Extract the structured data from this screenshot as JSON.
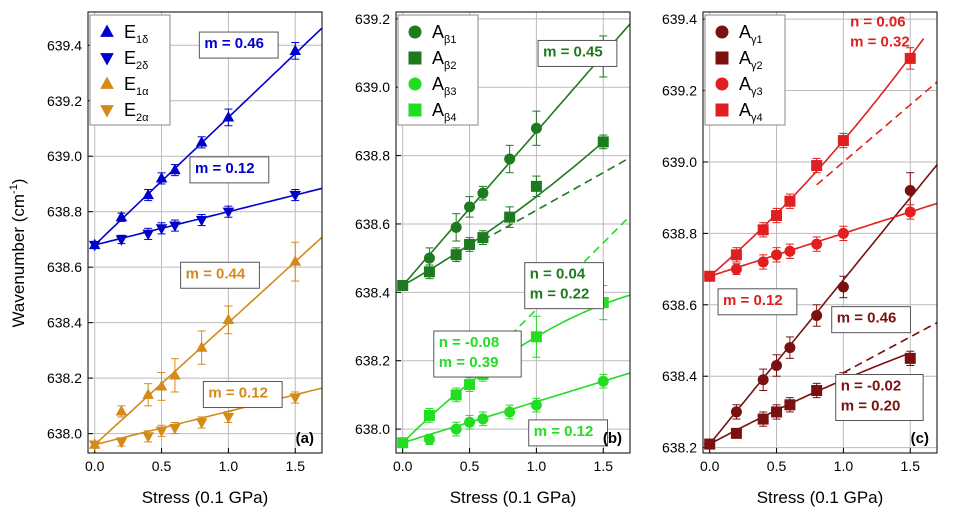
{
  "y_axis_label": "Wavenumber (cm",
  "y_axis_label_sup": "-1",
  "y_axis_label_end": ")",
  "chart_data": [
    {
      "type": "scatter",
      "panel_label": "(a)",
      "xlabel": "Stress (0.1 GPa)",
      "ylabel": "Wavenumber (cm-1)",
      "xlim": [
        -0.05,
        1.7
      ],
      "ylim": [
        637.93,
        639.52
      ],
      "xticks": [
        0.0,
        0.5,
        1.0,
        1.5
      ],
      "xtick_labels": [
        "0.0",
        "0.5",
        "1.0",
        "1.5"
      ],
      "yticks": [
        638.0,
        638.2,
        638.4,
        638.6,
        638.8,
        639.0,
        639.2,
        639.4
      ],
      "ytick_labels": [
        "638.0",
        "638.2",
        "638.4",
        "638.6",
        "638.8",
        "639.0",
        "639.2",
        "639.4"
      ],
      "legend_position": "top-left",
      "series": [
        {
          "name": "E1δ",
          "label_main": "E",
          "label_sub": "1δ",
          "color": "#0000cc",
          "marker": "triangle-up",
          "x": [
            0.0,
            0.2,
            0.4,
            0.5,
            0.6,
            0.8,
            1.0,
            1.5
          ],
          "y": [
            638.68,
            638.78,
            638.86,
            638.92,
            638.95,
            639.05,
            639.14,
            639.38
          ],
          "err": [
            0.01,
            0.015,
            0.02,
            0.02,
            0.02,
            0.02,
            0.03,
            0.03
          ],
          "fit": {
            "a": 638.68,
            "m": 0.46,
            "n": 0,
            "x_end": 1.7,
            "dashed": false
          }
        },
        {
          "name": "E2δ",
          "label_main": "E",
          "label_sub": "2δ",
          "color": "#0000cc",
          "marker": "triangle-down",
          "x": [
            0.0,
            0.2,
            0.4,
            0.5,
            0.6,
            0.8,
            1.0,
            1.5
          ],
          "y": [
            638.68,
            638.7,
            638.72,
            638.74,
            638.75,
            638.77,
            638.8,
            638.86
          ],
          "err": [
            0.01,
            0.015,
            0.02,
            0.02,
            0.02,
            0.02,
            0.02,
            0.02
          ],
          "fit": {
            "a": 638.68,
            "m": 0.12,
            "n": 0,
            "x_end": 1.7,
            "dashed": false
          }
        },
        {
          "name": "E1α",
          "label_main": "E",
          "label_sub": "1α",
          "color": "#d48a1a",
          "marker": "triangle-up",
          "x": [
            0.0,
            0.2,
            0.4,
            0.5,
            0.6,
            0.8,
            1.0,
            1.5
          ],
          "y": [
            637.96,
            638.08,
            638.14,
            638.17,
            638.21,
            638.31,
            638.41,
            638.62
          ],
          "err": [
            0.01,
            0.02,
            0.04,
            0.05,
            0.06,
            0.06,
            0.05,
            0.07
          ],
          "fit": {
            "a": 637.96,
            "m": 0.44,
            "n": 0,
            "x_end": 1.7,
            "dashed": false
          }
        },
        {
          "name": "E2α",
          "label_main": "E",
          "label_sub": "2α",
          "color": "#d48a1a",
          "marker": "triangle-down",
          "x": [
            0.0,
            0.2,
            0.4,
            0.5,
            0.6,
            0.8,
            1.0,
            1.5
          ],
          "y": [
            637.96,
            637.97,
            637.99,
            638.01,
            638.02,
            638.04,
            638.06,
            638.13
          ],
          "err": [
            0.01,
            0.015,
            0.02,
            0.02,
            0.02,
            0.02,
            0.02,
            0.02
          ],
          "fit": {
            "a": 637.96,
            "m": 0.12,
            "n": 0,
            "x_end": 1.7,
            "dashed": false
          }
        }
      ],
      "annotations": [
        {
          "text": "m = 0.46",
          "lines": [
            "m = 0.46"
          ],
          "color": "#0000cc",
          "boxed": true,
          "x": 0.82,
          "y": 639.39
        },
        {
          "text": "m = 0.12",
          "lines": [
            "m = 0.12"
          ],
          "color": "#0000cc",
          "boxed": true,
          "x": 0.75,
          "y": 638.94
        },
        {
          "text": "m = 0.44",
          "lines": [
            "m = 0.44"
          ],
          "color": "#d48a1a",
          "boxed": true,
          "x": 0.68,
          "y": 638.56
        },
        {
          "text": "m = 0.12",
          "lines": [
            "m = 0.12"
          ],
          "color": "#d48a1a",
          "boxed": true,
          "x": 0.85,
          "y": 638.13
        }
      ]
    },
    {
      "type": "scatter",
      "panel_label": "(b)",
      "xlabel": "Stress (0.1 GPa)",
      "ylabel": "",
      "xlim": [
        -0.05,
        1.7
      ],
      "ylim": [
        637.93,
        639.22
      ],
      "xticks": [
        0.0,
        0.5,
        1.0,
        1.5
      ],
      "xtick_labels": [
        "0.0",
        "0.5",
        "1.0",
        "1.5"
      ],
      "yticks": [
        638.0,
        638.2,
        638.4,
        638.6,
        638.8,
        639.0,
        639.2
      ],
      "ytick_labels": [
        "638.0",
        "638.2",
        "638.4",
        "638.6",
        "638.8",
        "639.0",
        "639.2"
      ],
      "legend_position": "top-left",
      "series": [
        {
          "name": "Aβ1",
          "label_main": "A",
          "label_sub": "β1",
          "color": "#1e7a1e",
          "marker": "circle",
          "x": [
            0.0,
            0.2,
            0.4,
            0.5,
            0.6,
            0.8,
            1.0,
            1.5
          ],
          "y": [
            638.42,
            638.5,
            638.59,
            638.65,
            638.69,
            638.79,
            638.88,
            639.09
          ],
          "err": [
            0.01,
            0.03,
            0.04,
            0.03,
            0.02,
            0.04,
            0.05,
            0.06
          ],
          "fit": {
            "a": 638.42,
            "m": 0.45,
            "n": 0,
            "x_end": 1.7,
            "dashed": false
          }
        },
        {
          "name": "Aβ2",
          "label_main": "A",
          "label_sub": "β2",
          "color": "#1e7a1e",
          "marker": "square",
          "x": [
            0.0,
            0.2,
            0.4,
            0.5,
            0.6,
            0.8,
            1.0,
            1.5
          ],
          "y": [
            638.42,
            638.46,
            638.51,
            638.54,
            638.56,
            638.62,
            638.71,
            638.84
          ],
          "err": [
            0.01,
            0.02,
            0.02,
            0.02,
            0.02,
            0.03,
            0.03,
            0.02
          ],
          "fit": {
            "a": 638.42,
            "m": 0.22,
            "n": 0.04,
            "x_end": 1.5,
            "dashed": false
          },
          "linear_fit": {
            "a": 638.42,
            "m": 0.22,
            "x_start": 0.6,
            "x_end": 1.7,
            "dashed": true
          }
        },
        {
          "name": "Aβ3",
          "label_main": "A",
          "label_sub": "β3",
          "color": "#22dd22",
          "marker": "circle",
          "x": [
            0.0,
            0.2,
            0.4,
            0.5,
            0.6,
            0.8,
            1.0,
            1.5
          ],
          "y": [
            637.96,
            637.97,
            638.0,
            638.02,
            638.03,
            638.05,
            638.07,
            638.14
          ],
          "err": [
            0.01,
            0.015,
            0.02,
            0.02,
            0.02,
            0.02,
            0.02,
            0.02
          ],
          "fit": {
            "a": 637.96,
            "m": 0.12,
            "n": 0,
            "x_end": 1.7,
            "dashed": false
          }
        },
        {
          "name": "Aβ4",
          "label_main": "A",
          "label_sub": "β4",
          "color": "#22dd22",
          "marker": "square",
          "x": [
            0.0,
            0.2,
            0.4,
            0.5,
            0.6,
            0.8,
            1.0,
            1.5
          ],
          "y": [
            637.96,
            638.04,
            638.1,
            638.13,
            638.16,
            638.23,
            638.27,
            638.37
          ],
          "err": [
            0.01,
            0.02,
            0.02,
            0.02,
            0.02,
            0.05,
            0.06,
            0.05
          ],
          "fit": {
            "a": 637.96,
            "m": 0.39,
            "n": -0.08,
            "x_end": 1.7,
            "dashed": false
          },
          "linear_fit": {
            "a": 637.96,
            "m": 0.39,
            "x_start": 0.6,
            "x_end": 1.7,
            "dashed": true
          }
        }
      ],
      "annotations": [
        {
          "text": "m = 0.45",
          "lines": [
            "m = 0.45"
          ],
          "color": "#1e7a1e",
          "boxed": true,
          "x": 1.05,
          "y": 639.09
        },
        {
          "text": "n = 0.04 m = 0.22",
          "lines": [
            "n = 0.04",
            "m = 0.22"
          ],
          "color": "#1e7a1e",
          "boxed": true,
          "x": 0.95,
          "y": 638.44
        },
        {
          "text": "n = -0.08 m = 0.39",
          "lines": [
            "n = -0.08",
            "m = 0.39"
          ],
          "color": "#22dd22",
          "boxed": true,
          "x": 0.27,
          "y": 638.24
        },
        {
          "text": "m = 0.12",
          "lines": [
            "m = 0.12"
          ],
          "color": "#22dd22",
          "boxed": true,
          "x": 0.98,
          "y": 637.98
        }
      ]
    },
    {
      "type": "scatter",
      "panel_label": "(c)",
      "xlabel": "Stress (0.1 GPa)",
      "ylabel": "",
      "xlim": [
        -0.05,
        1.7
      ],
      "ylim": [
        638.185,
        639.42
      ],
      "xticks": [
        0.0,
        0.5,
        1.0,
        1.5
      ],
      "xtick_labels": [
        "0.0",
        "0.5",
        "1.0",
        "1.5"
      ],
      "yticks": [
        638.2,
        638.4,
        638.6,
        638.8,
        639.0,
        639.2,
        639.4
      ],
      "ytick_labels": [
        "638.2",
        "638.4",
        "638.6",
        "638.8",
        "639.0",
        "639.2",
        "639.4"
      ],
      "legend_position": "top-left",
      "series": [
        {
          "name": "Aγ1",
          "label_main": "A",
          "label_sub": "γ1",
          "color": "#7a1010",
          "marker": "circle",
          "x": [
            0.0,
            0.2,
            0.4,
            0.5,
            0.6,
            0.8,
            1.0,
            1.5
          ],
          "y": [
            638.21,
            638.3,
            638.39,
            638.43,
            638.48,
            638.57,
            638.65,
            638.92
          ],
          "err": [
            0.01,
            0.02,
            0.03,
            0.03,
            0.03,
            0.03,
            0.03,
            0.05
          ],
          "fit": {
            "a": 638.21,
            "m": 0.46,
            "n": 0,
            "x_end": 1.7,
            "dashed": false
          }
        },
        {
          "name": "Aγ2",
          "label_main": "A",
          "label_sub": "γ2",
          "color": "#7a1010",
          "marker": "square",
          "x": [
            0.0,
            0.2,
            0.4,
            0.5,
            0.6,
            0.8,
            1.0,
            1.5
          ],
          "y": [
            638.21,
            638.24,
            638.28,
            638.3,
            638.32,
            638.36,
            638.39,
            638.45
          ],
          "err": [
            0.01,
            0.01,
            0.02,
            0.02,
            0.02,
            0.02,
            0.02,
            0.02
          ],
          "fit": {
            "a": 638.21,
            "m": 0.2,
            "n": -0.02,
            "x_end": 1.5,
            "dashed": false
          },
          "linear_fit": {
            "a": 638.21,
            "m": 0.2,
            "x_start": 1.0,
            "x_end": 1.7,
            "dashed": true
          }
        },
        {
          "name": "Aγ3",
          "label_main": "A",
          "label_sub": "γ3",
          "color": "#e02020",
          "marker": "circle",
          "x": [
            0.0,
            0.2,
            0.4,
            0.5,
            0.6,
            0.8,
            1.0,
            1.5
          ],
          "y": [
            638.68,
            638.7,
            638.72,
            638.74,
            638.75,
            638.77,
            638.8,
            638.86
          ],
          "err": [
            0.01,
            0.015,
            0.02,
            0.02,
            0.02,
            0.02,
            0.02,
            0.02
          ],
          "fit": {
            "a": 638.68,
            "m": 0.12,
            "n": 0,
            "x_end": 1.7,
            "dashed": false
          }
        },
        {
          "name": "Aγ4",
          "label_main": "A",
          "label_sub": "γ4",
          "color": "#e02020",
          "marker": "square",
          "x": [
            0.0,
            0.2,
            0.4,
            0.5,
            0.6,
            0.8,
            1.0,
            1.5
          ],
          "y": [
            638.68,
            638.74,
            638.81,
            638.85,
            638.89,
            638.99,
            639.06,
            639.29
          ],
          "err": [
            0.01,
            0.02,
            0.02,
            0.02,
            0.02,
            0.02,
            0.02,
            0.03
          ],
          "fit": {
            "a": 638.68,
            "m": 0.32,
            "n": 0.06,
            "x_end": 1.6,
            "dashed": false
          },
          "linear_fit": {
            "a": 638.68,
            "m": 0.32,
            "x_start": 0.8,
            "x_end": 1.7,
            "dashed": true
          }
        }
      ],
      "annotations": [
        {
          "text": "n = 0.06 m = 0.32",
          "lines": [
            "n = 0.06",
            "m = 0.32"
          ],
          "color": "#e02020",
          "boxed": false,
          "x": 1.05,
          "y": 639.38
        },
        {
          "text": "m = 0.12",
          "lines": [
            "m = 0.12"
          ],
          "color": "#e02020",
          "boxed": true,
          "x": 0.1,
          "y": 638.6
        },
        {
          "text": "m = 0.46",
          "lines": [
            "m = 0.46"
          ],
          "color": "#7a1010",
          "boxed": true,
          "x": 0.95,
          "y": 638.55
        },
        {
          "text": "n = -0.02 m = 0.20",
          "lines": [
            "n = -0.02",
            "m = 0.20"
          ],
          "color": "#7a1010",
          "boxed": true,
          "x": 0.98,
          "y": 638.36
        }
      ]
    }
  ]
}
